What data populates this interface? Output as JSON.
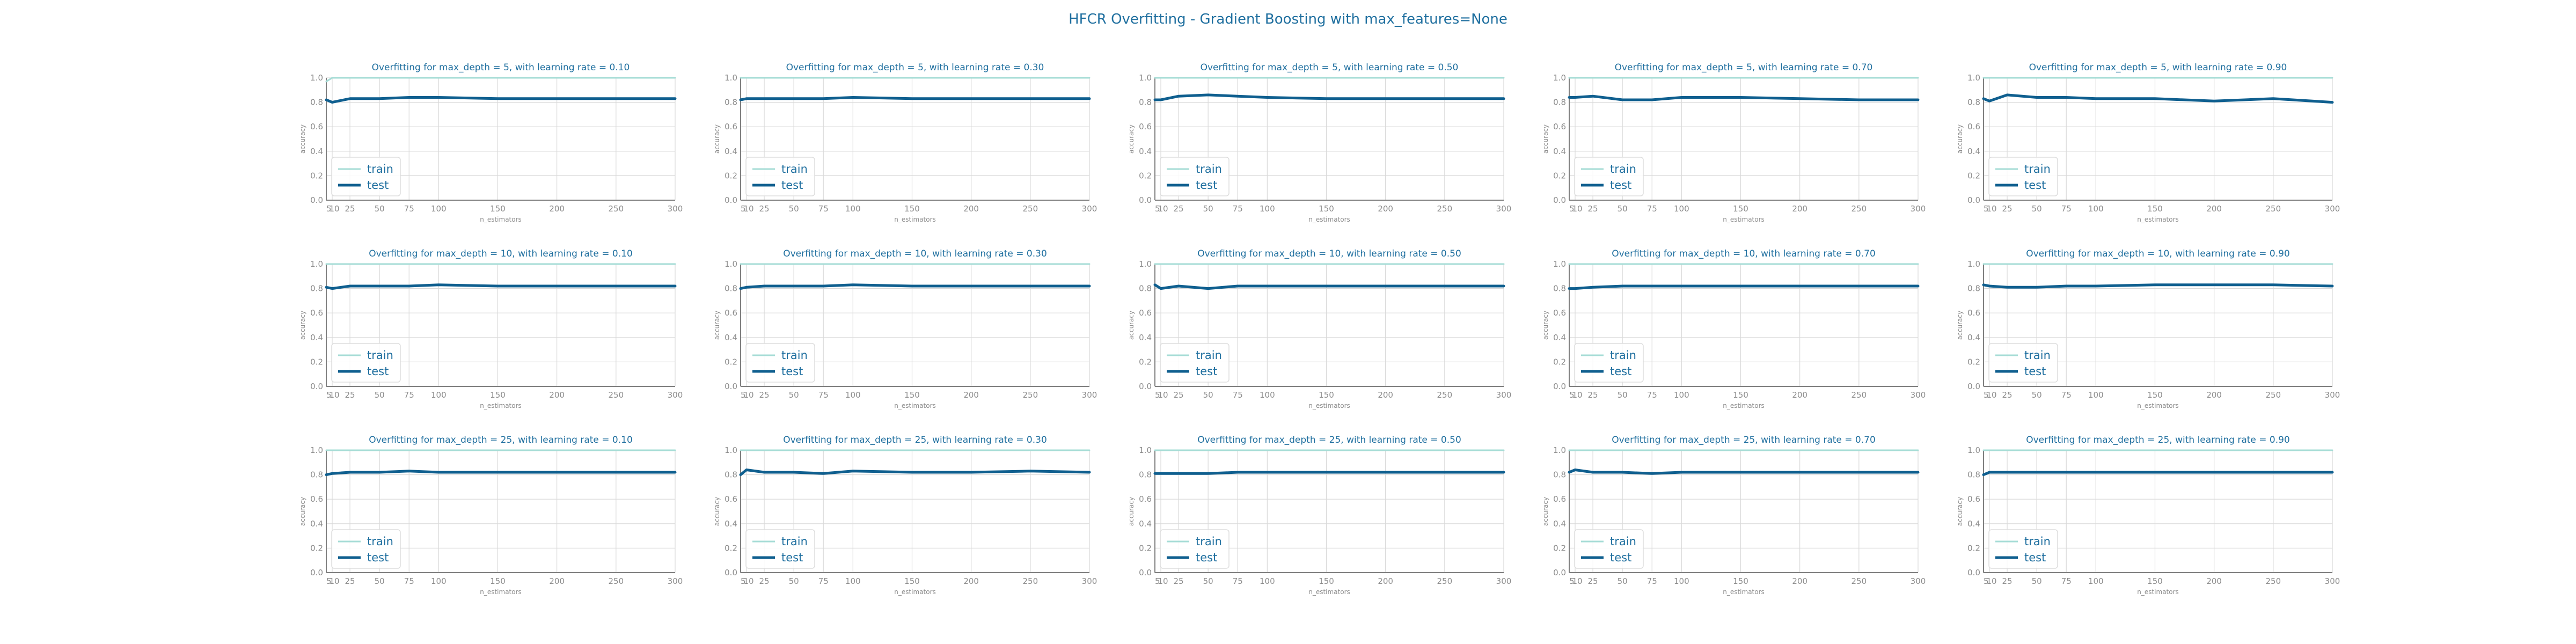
{
  "figure": {
    "suptitle": "HFCR Overfitting - Gradient Boosting with max_features=None"
  },
  "colors": {
    "train": "#a6dcd6",
    "test": "#0f5f8f",
    "title": "#1f6f9f",
    "grid": "#d9d9d9",
    "axis": "#7f7f7f"
  },
  "chart_data": [
    {
      "type": "line",
      "title": "Overfitting for max_depth = 5, with learning rate = 0.10",
      "xlabel": "n_estimators",
      "ylabel": "accuracy",
      "x": [
        5,
        10,
        25,
        50,
        75,
        100,
        150,
        200,
        250,
        300
      ],
      "xticks": [
        "5",
        "10",
        "25",
        "50",
        "75",
        "100",
        "150",
        "200",
        "250",
        "300"
      ],
      "yticks": [
        "0.0",
        "0.2",
        "0.4",
        "0.6",
        "0.8",
        "1.0"
      ],
      "xlim": [
        5,
        300
      ],
      "ylim": [
        0,
        1
      ],
      "legend": "lower-left",
      "grid": true,
      "series": [
        {
          "name": "train",
          "values": [
            0.97,
            1,
            1,
            1,
            1,
            1,
            1,
            1,
            1,
            1
          ]
        },
        {
          "name": "test",
          "values": [
            0.82,
            0.8,
            0.83,
            0.83,
            0.84,
            0.84,
            0.83,
            0.83,
            0.83,
            0.83
          ]
        }
      ]
    },
    {
      "type": "line",
      "title": "Overfitting for max_depth = 5, with learning rate = 0.30",
      "xlabel": "n_estimators",
      "ylabel": "accuracy",
      "x": [
        5,
        10,
        25,
        50,
        75,
        100,
        150,
        200,
        250,
        300
      ],
      "xticks": [
        "5",
        "10",
        "25",
        "50",
        "75",
        "100",
        "150",
        "200",
        "250",
        "300"
      ],
      "yticks": [
        "0.0",
        "0.2",
        "0.4",
        "0.6",
        "0.8",
        "1.0"
      ],
      "xlim": [
        5,
        300
      ],
      "ylim": [
        0,
        1
      ],
      "legend": "lower-left",
      "grid": true,
      "series": [
        {
          "name": "train",
          "values": [
            1,
            1,
            1,
            1,
            1,
            1,
            1,
            1,
            1,
            1
          ]
        },
        {
          "name": "test",
          "values": [
            0.82,
            0.83,
            0.83,
            0.83,
            0.83,
            0.84,
            0.83,
            0.83,
            0.83,
            0.83
          ]
        }
      ]
    },
    {
      "type": "line",
      "title": "Overfitting for max_depth = 5, with learning rate = 0.50",
      "xlabel": "n_estimators",
      "ylabel": "accuracy",
      "x": [
        5,
        10,
        25,
        50,
        75,
        100,
        150,
        200,
        250,
        300
      ],
      "xticks": [
        "5",
        "10",
        "25",
        "50",
        "75",
        "100",
        "150",
        "200",
        "250",
        "300"
      ],
      "yticks": [
        "0.0",
        "0.2",
        "0.4",
        "0.6",
        "0.8",
        "1.0"
      ],
      "xlim": [
        5,
        300
      ],
      "ylim": [
        0,
        1
      ],
      "legend": "lower-left",
      "grid": true,
      "series": [
        {
          "name": "train",
          "values": [
            1,
            1,
            1,
            1,
            1,
            1,
            1,
            1,
            1,
            1
          ]
        },
        {
          "name": "test",
          "values": [
            0.82,
            0.82,
            0.85,
            0.86,
            0.85,
            0.84,
            0.83,
            0.83,
            0.83,
            0.83
          ]
        }
      ]
    },
    {
      "type": "line",
      "title": "Overfitting for max_depth = 5, with learning rate = 0.70",
      "xlabel": "n_estimators",
      "ylabel": "accuracy",
      "x": [
        5,
        10,
        25,
        50,
        75,
        100,
        150,
        200,
        250,
        300
      ],
      "xticks": [
        "5",
        "10",
        "25",
        "50",
        "75",
        "100",
        "150",
        "200",
        "250",
        "300"
      ],
      "yticks": [
        "0.0",
        "0.2",
        "0.4",
        "0.6",
        "0.8",
        "1.0"
      ],
      "xlim": [
        5,
        300
      ],
      "ylim": [
        0,
        1
      ],
      "legend": "lower-left",
      "grid": true,
      "series": [
        {
          "name": "train",
          "values": [
            1,
            1,
            1,
            1,
            1,
            1,
            1,
            1,
            1,
            1
          ]
        },
        {
          "name": "test",
          "values": [
            0.84,
            0.84,
            0.85,
            0.82,
            0.82,
            0.84,
            0.84,
            0.83,
            0.82,
            0.82
          ]
        }
      ]
    },
    {
      "type": "line",
      "title": "Overfitting for max_depth = 5, with learning rate = 0.90",
      "xlabel": "n_estimators",
      "ylabel": "accuracy",
      "x": [
        5,
        10,
        25,
        50,
        75,
        100,
        150,
        200,
        250,
        300
      ],
      "xticks": [
        "5",
        "10",
        "25",
        "50",
        "75",
        "100",
        "150",
        "200",
        "250",
        "300"
      ],
      "yticks": [
        "0.0",
        "0.2",
        "0.4",
        "0.6",
        "0.8",
        "1.0"
      ],
      "xlim": [
        5,
        300
      ],
      "ylim": [
        0,
        1
      ],
      "legend": "lower-left",
      "grid": true,
      "series": [
        {
          "name": "train",
          "values": [
            1,
            1,
            1,
            1,
            1,
            1,
            1,
            1,
            1,
            1
          ]
        },
        {
          "name": "test",
          "values": [
            0.83,
            0.81,
            0.86,
            0.84,
            0.84,
            0.83,
            0.83,
            0.81,
            0.83,
            0.8
          ]
        }
      ]
    },
    {
      "type": "line",
      "title": "Overfitting for max_depth = 10, with learning rate = 0.10",
      "xlabel": "n_estimators",
      "ylabel": "accuracy",
      "x": [
        5,
        10,
        25,
        50,
        75,
        100,
        150,
        200,
        250,
        300
      ],
      "xticks": [
        "5",
        "10",
        "25",
        "50",
        "75",
        "100",
        "150",
        "200",
        "250",
        "300"
      ],
      "yticks": [
        "0.0",
        "0.2",
        "0.4",
        "0.6",
        "0.8",
        "1.0"
      ],
      "xlim": [
        5,
        300
      ],
      "ylim": [
        0,
        1
      ],
      "legend": "lower-left",
      "grid": true,
      "series": [
        {
          "name": "train",
          "values": [
            1,
            1,
            1,
            1,
            1,
            1,
            1,
            1,
            1,
            1
          ]
        },
        {
          "name": "test",
          "values": [
            0.81,
            0.8,
            0.82,
            0.82,
            0.82,
            0.83,
            0.82,
            0.82,
            0.82,
            0.82
          ]
        }
      ]
    },
    {
      "type": "line",
      "title": "Overfitting for max_depth = 10, with learning rate = 0.30",
      "xlabel": "n_estimators",
      "ylabel": "accuracy",
      "x": [
        5,
        10,
        25,
        50,
        75,
        100,
        150,
        200,
        250,
        300
      ],
      "xticks": [
        "5",
        "10",
        "25",
        "50",
        "75",
        "100",
        "150",
        "200",
        "250",
        "300"
      ],
      "yticks": [
        "0.0",
        "0.2",
        "0.4",
        "0.6",
        "0.8",
        "1.0"
      ],
      "xlim": [
        5,
        300
      ],
      "ylim": [
        0,
        1
      ],
      "legend": "lower-left",
      "grid": true,
      "series": [
        {
          "name": "train",
          "values": [
            1,
            1,
            1,
            1,
            1,
            1,
            1,
            1,
            1,
            1
          ]
        },
        {
          "name": "test",
          "values": [
            0.8,
            0.81,
            0.82,
            0.82,
            0.82,
            0.83,
            0.82,
            0.82,
            0.82,
            0.82
          ]
        }
      ]
    },
    {
      "type": "line",
      "title": "Overfitting for max_depth = 10, with learning rate = 0.50",
      "xlabel": "n_estimators",
      "ylabel": "accuracy",
      "x": [
        5,
        10,
        25,
        50,
        75,
        100,
        150,
        200,
        250,
        300
      ],
      "xticks": [
        "5",
        "10",
        "25",
        "50",
        "75",
        "100",
        "150",
        "200",
        "250",
        "300"
      ],
      "yticks": [
        "0.0",
        "0.2",
        "0.4",
        "0.6",
        "0.8",
        "1.0"
      ],
      "xlim": [
        5,
        300
      ],
      "ylim": [
        0,
        1
      ],
      "legend": "lower-left",
      "grid": true,
      "series": [
        {
          "name": "train",
          "values": [
            1,
            1,
            1,
            1,
            1,
            1,
            1,
            1,
            1,
            1
          ]
        },
        {
          "name": "test",
          "values": [
            0.83,
            0.8,
            0.82,
            0.8,
            0.82,
            0.82,
            0.82,
            0.82,
            0.82,
            0.82
          ]
        }
      ]
    },
    {
      "type": "line",
      "title": "Overfitting for max_depth = 10, with learning rate = 0.70",
      "xlabel": "n_estimators",
      "ylabel": "accuracy",
      "x": [
        5,
        10,
        25,
        50,
        75,
        100,
        150,
        200,
        250,
        300
      ],
      "xticks": [
        "5",
        "10",
        "25",
        "50",
        "75",
        "100",
        "150",
        "200",
        "250",
        "300"
      ],
      "yticks": [
        "0.0",
        "0.2",
        "0.4",
        "0.6",
        "0.8",
        "1.0"
      ],
      "xlim": [
        5,
        300
      ],
      "ylim": [
        0,
        1
      ],
      "legend": "lower-left",
      "grid": true,
      "series": [
        {
          "name": "train",
          "values": [
            1,
            1,
            1,
            1,
            1,
            1,
            1,
            1,
            1,
            1
          ]
        },
        {
          "name": "test",
          "values": [
            0.8,
            0.8,
            0.81,
            0.82,
            0.82,
            0.82,
            0.82,
            0.82,
            0.82,
            0.82
          ]
        }
      ]
    },
    {
      "type": "line",
      "title": "Overfitting for max_depth = 10, with learning rate = 0.90",
      "xlabel": "n_estimators",
      "ylabel": "accuracy",
      "x": [
        5,
        10,
        25,
        50,
        75,
        100,
        150,
        200,
        250,
        300
      ],
      "xticks": [
        "5",
        "10",
        "25",
        "50",
        "75",
        "100",
        "150",
        "200",
        "250",
        "300"
      ],
      "yticks": [
        "0.0",
        "0.2",
        "0.4",
        "0.6",
        "0.8",
        "1.0"
      ],
      "xlim": [
        5,
        300
      ],
      "ylim": [
        0,
        1
      ],
      "legend": "lower-left",
      "grid": true,
      "series": [
        {
          "name": "train",
          "values": [
            1,
            1,
            1,
            1,
            1,
            1,
            1,
            1,
            1,
            1
          ]
        },
        {
          "name": "test",
          "values": [
            0.83,
            0.82,
            0.81,
            0.81,
            0.82,
            0.82,
            0.83,
            0.83,
            0.83,
            0.82
          ]
        }
      ]
    },
    {
      "type": "line",
      "title": "Overfitting for max_depth = 25, with learning rate = 0.10",
      "xlabel": "n_estimators",
      "ylabel": "accuracy",
      "x": [
        5,
        10,
        25,
        50,
        75,
        100,
        150,
        200,
        250,
        300
      ],
      "xticks": [
        "5",
        "10",
        "25",
        "50",
        "75",
        "100",
        "150",
        "200",
        "250",
        "300"
      ],
      "yticks": [
        "0.0",
        "0.2",
        "0.4",
        "0.6",
        "0.8",
        "1.0"
      ],
      "xlim": [
        5,
        300
      ],
      "ylim": [
        0,
        1
      ],
      "legend": "lower-left",
      "grid": true,
      "series": [
        {
          "name": "train",
          "values": [
            1,
            1,
            1,
            1,
            1,
            1,
            1,
            1,
            1,
            1
          ]
        },
        {
          "name": "test",
          "values": [
            0.8,
            0.81,
            0.82,
            0.82,
            0.83,
            0.82,
            0.82,
            0.82,
            0.82,
            0.82
          ]
        }
      ]
    },
    {
      "type": "line",
      "title": "Overfitting for max_depth = 25, with learning rate = 0.30",
      "xlabel": "n_estimators",
      "ylabel": "accuracy",
      "x": [
        5,
        10,
        25,
        50,
        75,
        100,
        150,
        200,
        250,
        300
      ],
      "xticks": [
        "5",
        "10",
        "25",
        "50",
        "75",
        "100",
        "150",
        "200",
        "250",
        "300"
      ],
      "yticks": [
        "0.0",
        "0.2",
        "0.4",
        "0.6",
        "0.8",
        "1.0"
      ],
      "xlim": [
        5,
        300
      ],
      "ylim": [
        0,
        1
      ],
      "legend": "lower-left",
      "grid": true,
      "series": [
        {
          "name": "train",
          "values": [
            1,
            1,
            1,
            1,
            1,
            1,
            1,
            1,
            1,
            1
          ]
        },
        {
          "name": "test",
          "values": [
            0.8,
            0.84,
            0.82,
            0.82,
            0.81,
            0.83,
            0.82,
            0.82,
            0.83,
            0.82
          ]
        }
      ]
    },
    {
      "type": "line",
      "title": "Overfitting for max_depth = 25, with learning rate = 0.50",
      "xlabel": "n_estimators",
      "ylabel": "accuracy",
      "x": [
        5,
        10,
        25,
        50,
        75,
        100,
        150,
        200,
        250,
        300
      ],
      "xticks": [
        "5",
        "10",
        "25",
        "50",
        "75",
        "100",
        "150",
        "200",
        "250",
        "300"
      ],
      "yticks": [
        "0.0",
        "0.2",
        "0.4",
        "0.6",
        "0.8",
        "1.0"
      ],
      "xlim": [
        5,
        300
      ],
      "ylim": [
        0,
        1
      ],
      "legend": "lower-left",
      "grid": true,
      "series": [
        {
          "name": "train",
          "values": [
            1,
            1,
            1,
            1,
            1,
            1,
            1,
            1,
            1,
            1
          ]
        },
        {
          "name": "test",
          "values": [
            0.81,
            0.81,
            0.81,
            0.81,
            0.82,
            0.82,
            0.82,
            0.82,
            0.82,
            0.82
          ]
        }
      ]
    },
    {
      "type": "line",
      "title": "Overfitting for max_depth = 25, with learning rate = 0.70",
      "xlabel": "n_estimators",
      "ylabel": "accuracy",
      "x": [
        5,
        10,
        25,
        50,
        75,
        100,
        150,
        200,
        250,
        300
      ],
      "xticks": [
        "5",
        "10",
        "25",
        "50",
        "75",
        "100",
        "150",
        "200",
        "250",
        "300"
      ],
      "yticks": [
        "0.0",
        "0.2",
        "0.4",
        "0.6",
        "0.8",
        "1.0"
      ],
      "xlim": [
        5,
        300
      ],
      "ylim": [
        0,
        1
      ],
      "legend": "lower-left",
      "grid": true,
      "series": [
        {
          "name": "train",
          "values": [
            1,
            1,
            1,
            1,
            1,
            1,
            1,
            1,
            1,
            1
          ]
        },
        {
          "name": "test",
          "values": [
            0.82,
            0.84,
            0.82,
            0.82,
            0.81,
            0.82,
            0.82,
            0.82,
            0.82,
            0.82
          ]
        }
      ]
    },
    {
      "type": "line",
      "title": "Overfitting for max_depth = 25, with learning rate = 0.90",
      "xlabel": "n_estimators",
      "ylabel": "accuracy",
      "x": [
        5,
        10,
        25,
        50,
        75,
        100,
        150,
        200,
        250,
        300
      ],
      "xticks": [
        "5",
        "10",
        "25",
        "50",
        "75",
        "100",
        "150",
        "200",
        "250",
        "300"
      ],
      "yticks": [
        "0.0",
        "0.2",
        "0.4",
        "0.6",
        "0.8",
        "1.0"
      ],
      "xlim": [
        5,
        300
      ],
      "ylim": [
        0,
        1
      ],
      "legend": "lower-left",
      "grid": true,
      "series": [
        {
          "name": "train",
          "values": [
            1,
            1,
            1,
            1,
            1,
            1,
            1,
            1,
            1,
            1
          ]
        },
        {
          "name": "test",
          "values": [
            0.8,
            0.82,
            0.82,
            0.82,
            0.82,
            0.82,
            0.82,
            0.82,
            0.82,
            0.82
          ]
        }
      ]
    }
  ]
}
